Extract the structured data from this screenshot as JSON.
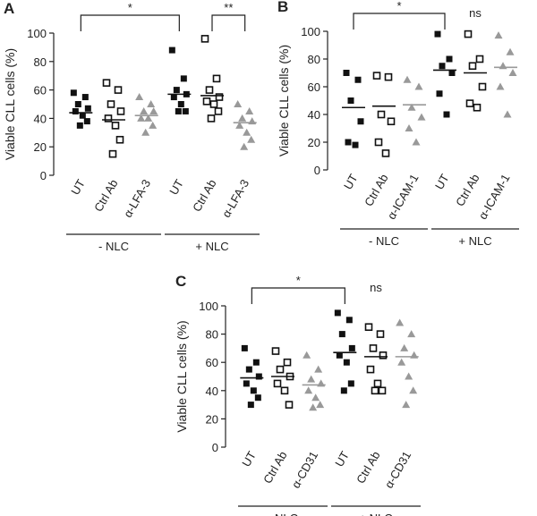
{
  "chart_data": [
    {
      "type": "dot",
      "panel": "A",
      "ylabel": "Viable CLL cells (%)",
      "categories": [
        "UT",
        "Ctrl Ab",
        "α-LFA-3",
        "UT",
        "Ctrl Ab",
        "α-LFA-3"
      ],
      "markers": [
        "filled-square",
        "open-square",
        "triangle",
        "filled-square",
        "open-square",
        "triangle"
      ],
      "colors": [
        "#111111",
        "#111111",
        "#999999",
        "#111111",
        "#111111",
        "#999999"
      ],
      "points": [
        [
          58,
          55,
          50,
          47,
          45,
          42,
          38,
          35
        ],
        [
          65,
          60,
          50,
          45,
          40,
          35,
          25,
          15
        ],
        [
          55,
          50,
          45,
          45,
          40,
          40,
          35,
          30
        ],
        [
          88,
          68,
          60,
          57,
          55,
          50,
          45,
          45
        ],
        [
          96,
          68,
          60,
          55,
          52,
          50,
          45,
          40
        ],
        [
          50,
          45,
          40,
          38,
          35,
          30,
          25,
          20
        ]
      ],
      "medians": [
        44,
        39,
        42,
        57,
        56,
        37
      ],
      "ylim": [
        0,
        100
      ],
      "yticks": [
        0,
        20,
        40,
        60,
        80,
        100
      ],
      "groups": [
        {
          "label": "- NLC",
          "first": 0,
          "last": 2
        },
        {
          "label": "+ NLC",
          "first": 3,
          "last": 5
        }
      ],
      "annotations": [
        {
          "text": "*",
          "from": 0,
          "to": 3
        },
        {
          "text": "**",
          "from": 4,
          "to": 5
        }
      ]
    },
    {
      "type": "dot",
      "panel": "B",
      "ylabel": "Viable CLL cells (%)",
      "categories": [
        "UT",
        "Ctrl Ab",
        "α-ICAM-1",
        "UT",
        "Ctrl Ab",
        "α-ICAM-1"
      ],
      "markers": [
        "filled-square",
        "open-square",
        "triangle",
        "filled-square",
        "open-square",
        "triangle"
      ],
      "colors": [
        "#111111",
        "#111111",
        "#999999",
        "#111111",
        "#111111",
        "#999999"
      ],
      "points": [
        [
          70,
          65,
          50,
          35,
          20,
          18
        ],
        [
          68,
          67,
          40,
          35,
          20,
          12
        ],
        [
          65,
          60,
          45,
          38,
          30,
          20
        ],
        [
          98,
          80,
          75,
          70,
          55,
          40
        ],
        [
          98,
          80,
          75,
          60,
          48,
          45
        ],
        [
          97,
          85,
          75,
          70,
          60,
          40
        ]
      ],
      "medians": [
        45,
        46,
        47,
        72,
        70,
        74
      ],
      "ylim": [
        0,
        100
      ],
      "yticks": [
        0,
        20,
        40,
        60,
        80,
        100
      ],
      "groups": [
        {
          "label": "- NLC",
          "first": 0,
          "last": 2
        },
        {
          "label": "+ NLC",
          "first": 3,
          "last": 5
        }
      ],
      "annotations": [
        {
          "text": "*",
          "from": 0,
          "to": 3
        },
        {
          "text": "ns",
          "at": 4
        }
      ]
    },
    {
      "type": "dot",
      "panel": "C",
      "ylabel": "Viable CLL cells (%)",
      "categories": [
        "UT",
        "Ctrl Ab",
        "α-CD31",
        "UT",
        "Ctrl Ab",
        "α-CD31"
      ],
      "markers": [
        "filled-square",
        "open-square",
        "triangle",
        "filled-square",
        "open-square",
        "triangle"
      ],
      "colors": [
        "#111111",
        "#111111",
        "#999999",
        "#111111",
        "#111111",
        "#999999"
      ],
      "points": [
        [
          70,
          60,
          55,
          50,
          45,
          40,
          35,
          30
        ],
        [
          68,
          60,
          55,
          50,
          45,
          40,
          30
        ],
        [
          65,
          55,
          48,
          45,
          40,
          35,
          30,
          28
        ],
        [
          95,
          90,
          80,
          70,
          65,
          60,
          45,
          40
        ],
        [
          85,
          80,
          70,
          65,
          55,
          45,
          40,
          40
        ],
        [
          88,
          80,
          70,
          65,
          60,
          50,
          40,
          30
        ]
      ],
      "medians": [
        49,
        50,
        44,
        67,
        64,
        64
      ],
      "ylim": [
        0,
        100
      ],
      "yticks": [
        0,
        20,
        40,
        60,
        80,
        100
      ],
      "groups": [
        {
          "label": "- NLC",
          "first": 0,
          "last": 2
        },
        {
          "label": "+ NLC",
          "first": 3,
          "last": 5
        }
      ],
      "annotations": [
        {
          "text": "*",
          "from": 0,
          "to": 3
        },
        {
          "text": "ns",
          "at": 4
        }
      ]
    }
  ]
}
